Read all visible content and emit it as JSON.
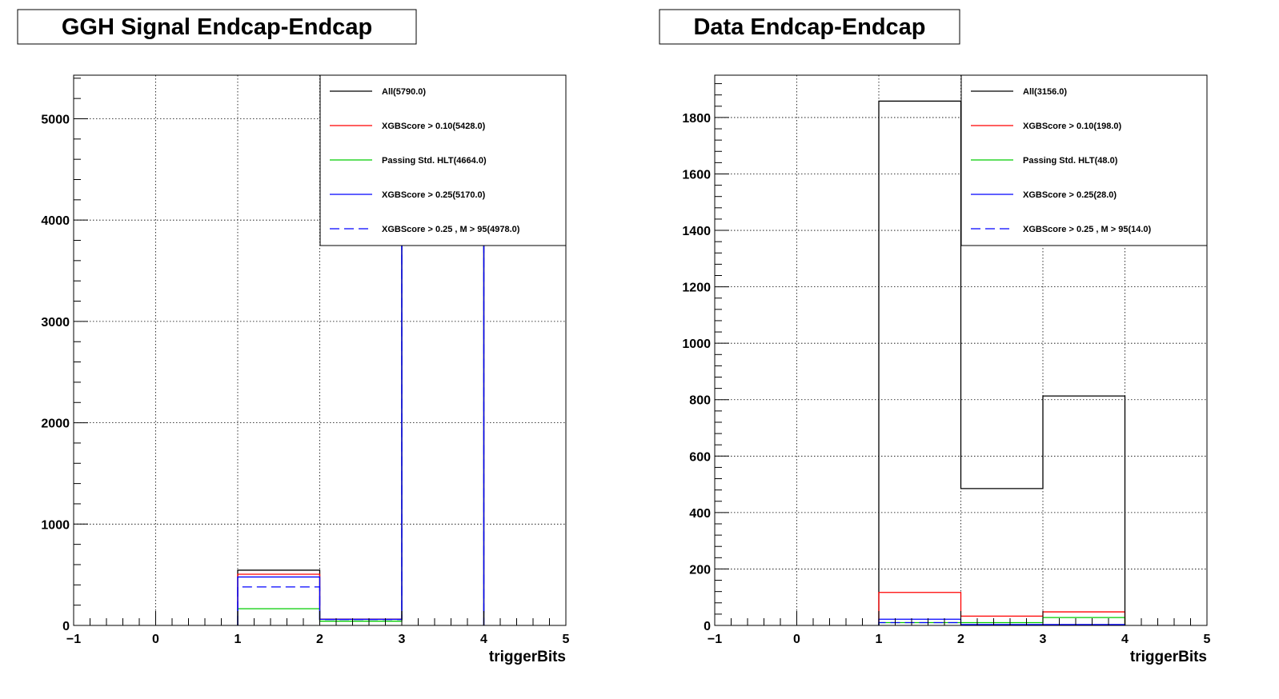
{
  "chart_data": [
    {
      "type": "step",
      "title": "GGH Signal Endcap-Endcap",
      "xlabel": "triggerBits",
      "ylabel": "",
      "xlim": [
        -1,
        5
      ],
      "ylim": [
        0,
        5430
      ],
      "xticks": [
        -1,
        0,
        1,
        2,
        3,
        4,
        5
      ],
      "xtick_labels": [
        "−1",
        "0",
        "1",
        "2",
        "3",
        "4",
        "5"
      ],
      "yticks": [
        0,
        1000,
        2000,
        3000,
        4000,
        5000
      ],
      "ytick_labels": [
        "0",
        "1000",
        "2000",
        "3000",
        "4000",
        "5000"
      ],
      "grid": true,
      "legend_position": "top-right",
      "bin_edges": [
        1,
        2,
        3,
        4
      ],
      "series": [
        {
          "name": "All(5790.0)",
          "color": "#000000",
          "dashed": false,
          "values": [
            545,
            62,
            5183
          ]
        },
        {
          "name": "XGBScore > 0.10(5428.0)",
          "color": "#ff0000",
          "dashed": false,
          "values": [
            505,
            60,
            4863
          ]
        },
        {
          "name": "Passing Std. HLT(4664.0)",
          "color": "#00cc00",
          "dashed": false,
          "values": [
            165,
            42,
            4457
          ]
        },
        {
          "name": "XGBScore > 0.25(5170.0)",
          "color": "#0000ff",
          "dashed": false,
          "values": [
            478,
            60,
            4632
          ]
        },
        {
          "name": "XGBScore > 0.25 , M > 95(4978.0)",
          "color": "#0000ff",
          "dashed": true,
          "values": [
            380,
            58,
            4540
          ]
        }
      ]
    },
    {
      "type": "step",
      "title": "Data Endcap-Endcap",
      "xlabel": "triggerBits",
      "ylabel": "",
      "xlim": [
        -1,
        5
      ],
      "ylim": [
        0,
        1950
      ],
      "xticks": [
        -1,
        0,
        1,
        2,
        3,
        4,
        5
      ],
      "xtick_labels": [
        "−1",
        "0",
        "1",
        "2",
        "3",
        "4",
        "5"
      ],
      "yticks": [
        0,
        200,
        400,
        600,
        800,
        1000,
        1200,
        1400,
        1600,
        1800
      ],
      "ytick_labels": [
        "0",
        "200",
        "400",
        "600",
        "800",
        "1000",
        "1200",
        "1400",
        "1600",
        "1800"
      ],
      "grid": true,
      "legend_position": "top-right",
      "bin_edges": [
        1,
        2,
        3,
        4
      ],
      "series": [
        {
          "name": "All(3156.0)",
          "color": "#000000",
          "dashed": false,
          "values": [
            1858,
            485,
            813
          ]
        },
        {
          "name": "XGBScore > 0.10(198.0)",
          "color": "#ff0000",
          "dashed": false,
          "values": [
            117,
            33,
            48
          ]
        },
        {
          "name": "Passing Std. HLT(48.0)",
          "color": "#00cc00",
          "dashed": false,
          "values": [
            10,
            10,
            28
          ]
        },
        {
          "name": "XGBScore > 0.25(28.0)",
          "color": "#0000ff",
          "dashed": false,
          "values": [
            22,
            3,
            3
          ]
        },
        {
          "name": "XGBScore > 0.25 , M > 95(14.0)",
          "color": "#0000ff",
          "dashed": true,
          "values": [
            10,
            2,
            2
          ]
        }
      ]
    }
  ]
}
